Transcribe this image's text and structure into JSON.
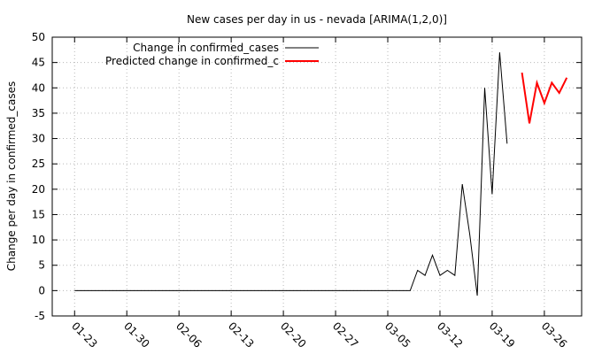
{
  "chart_data": {
    "type": "line",
    "title": "New cases per day in us - nevada [ARIMA(1,2,0)]",
    "xlabel": "",
    "ylabel": "Change per day in confirmed_cases",
    "ylim": [
      -5,
      50
    ],
    "yticks": [
      -5,
      0,
      5,
      10,
      15,
      20,
      25,
      30,
      35,
      40,
      45,
      50
    ],
    "xlim": [
      "2020-01-20",
      "2020-03-31"
    ],
    "xticks": [
      "01-23",
      "01-30",
      "02-06",
      "02-13",
      "02-20",
      "02-27",
      "03-05",
      "03-12",
      "03-19",
      "03-26"
    ],
    "xtick_dates": [
      "2020-01-23",
      "2020-01-30",
      "2020-02-06",
      "2020-02-13",
      "2020-02-20",
      "2020-02-27",
      "2020-03-05",
      "2020-03-12",
      "2020-03-19",
      "2020-03-26"
    ],
    "grid": true,
    "legend_position": "top-left",
    "series": [
      {
        "name": "Change in confirmed_cases",
        "color": "#000000",
        "x": [
          "2020-01-23",
          "2020-03-08",
          "2020-03-09",
          "2020-03-10",
          "2020-03-11",
          "2020-03-12",
          "2020-03-13",
          "2020-03-14",
          "2020-03-15",
          "2020-03-16",
          "2020-03-17",
          "2020-03-18",
          "2020-03-19",
          "2020-03-20",
          "2020-03-21"
        ],
        "values": [
          0,
          0,
          4,
          3,
          7,
          3,
          4,
          3,
          21,
          11,
          -1,
          40,
          19,
          47,
          29
        ]
      },
      {
        "name": "Predicted change in confirmed_c",
        "color": "#ff0000",
        "x": [
          "2020-03-23",
          "2020-03-24",
          "2020-03-25",
          "2020-03-26",
          "2020-03-27",
          "2020-03-28",
          "2020-03-29"
        ],
        "values": [
          43,
          33,
          41,
          37,
          41,
          39,
          42
        ]
      }
    ]
  }
}
